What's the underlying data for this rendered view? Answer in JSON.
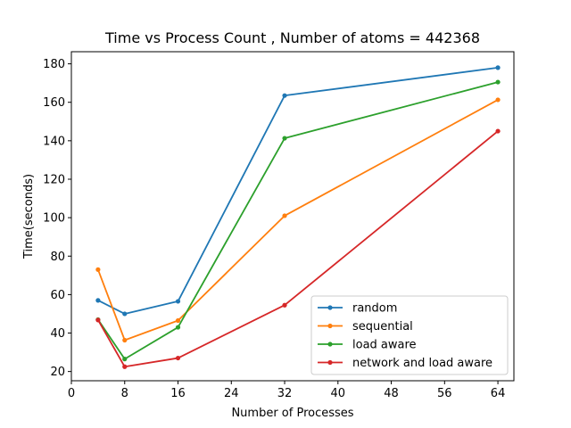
{
  "chart_data": {
    "type": "line",
    "title": "Time vs Process Count , Number of atoms = 442368",
    "xlabel": "Number of Processes",
    "ylabel": "Time(seconds)",
    "x": [
      4,
      8,
      16,
      32,
      64
    ],
    "xlim": [
      0,
      66.4
    ],
    "ylim": [
      15.2,
      186.3
    ],
    "xticks": [
      0,
      8,
      16,
      24,
      32,
      40,
      48,
      56,
      64
    ],
    "yticks": [
      20,
      40,
      60,
      80,
      100,
      120,
      140,
      160,
      180
    ],
    "grid": false,
    "legend_position": "lower-right",
    "series": [
      {
        "name": "random",
        "color": "#1f77b4",
        "values": [
          57.0,
          50.0,
          56.5,
          163.5,
          178.0
        ]
      },
      {
        "name": "sequential",
        "color": "#ff7f0e",
        "values": [
          73.0,
          36.3,
          46.5,
          101.0,
          161.3
        ]
      },
      {
        "name": "load aware",
        "color": "#2ca02c",
        "values": [
          47.0,
          26.5,
          43.0,
          141.3,
          170.5
        ]
      },
      {
        "name": "network and load aware",
        "color": "#d62728",
        "values": [
          46.8,
          22.5,
          27.0,
          54.5,
          145.0
        ]
      }
    ]
  }
}
